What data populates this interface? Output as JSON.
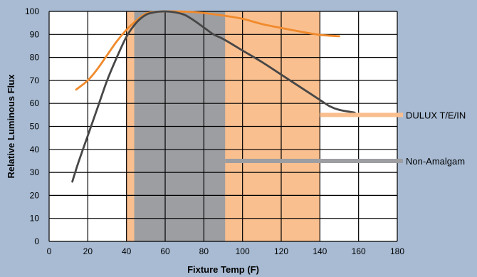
{
  "chart_data": {
    "type": "line",
    "xlabel": "Fixture Temp (F)",
    "ylabel": "Relative Luminous Flux",
    "xlim": [
      0,
      180
    ],
    "ylim": [
      0,
      100
    ],
    "x_ticks": [
      0,
      20,
      40,
      60,
      80,
      100,
      120,
      140,
      160,
      180
    ],
    "y_ticks": [
      0,
      10,
      20,
      30,
      40,
      50,
      60,
      70,
      80,
      90,
      100
    ],
    "grid": true,
    "legend": "right",
    "series": [
      {
        "name": "DULUX T/E/IN",
        "color": "#f08a2c",
        "fill_color": "#f9bf8f",
        "range": [
          40,
          140
        ],
        "x": [
          14,
          20,
          25,
          30,
          35,
          40,
          45,
          50,
          55,
          60,
          65,
          70,
          75,
          80,
          90,
          100,
          110,
          120,
          130,
          140,
          150
        ],
        "y": [
          66,
          70,
          75,
          81,
          87,
          92,
          96,
          99,
          99.8,
          100,
          100,
          99.9,
          99.7,
          99.3,
          98.2,
          96.8,
          94.5,
          92.8,
          91.2,
          89.8,
          89.2
        ]
      },
      {
        "name": "Non-Amalgam",
        "color": "#474747",
        "fill_color": "#9d9ea2",
        "range": [
          44,
          91
        ],
        "x": [
          12,
          15,
          20,
          25,
          30,
          35,
          40,
          45,
          50,
          55,
          60,
          65,
          70,
          75,
          80,
          85,
          90,
          100,
          110,
          120,
          130,
          140,
          145,
          150,
          158
        ],
        "y": [
          26,
          34,
          46,
          58,
          70,
          80,
          89,
          95,
          98.5,
          99.7,
          100,
          99.6,
          98.5,
          96,
          93,
          90,
          88,
          83,
          78,
          72.5,
          67,
          61.5,
          58.8,
          57.2,
          56
        ]
      }
    ]
  }
}
